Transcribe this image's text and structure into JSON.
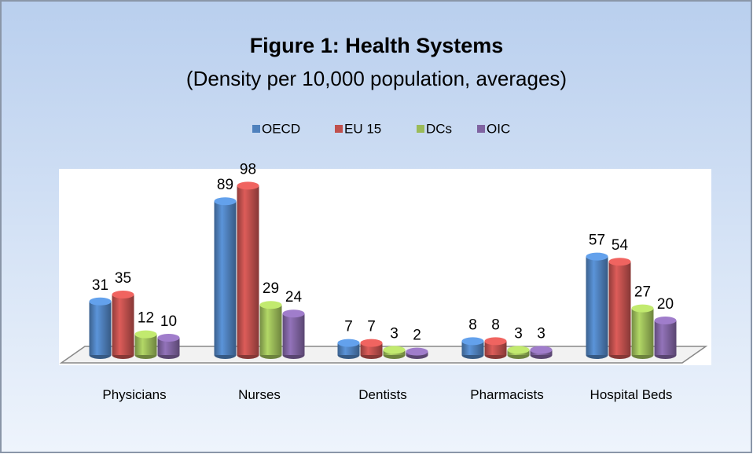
{
  "chart_data": {
    "type": "bar",
    "title": "Figure 1: Health Systems",
    "subtitle": "(Density per 10,000 population, averages)",
    "categories": [
      "Physicians",
      "Nurses",
      "Dentists",
      "Pharmacists",
      "Hospital Beds"
    ],
    "series": [
      {
        "name": "OECD",
        "color": "#4f81bd",
        "values": [
          31,
          89,
          7,
          8,
          57
        ]
      },
      {
        "name": "EU 15",
        "color": "#c0504d",
        "values": [
          35,
          98,
          7,
          8,
          54
        ]
      },
      {
        "name": "DCs",
        "color": "#9bbb59",
        "values": [
          12,
          29,
          3,
          3,
          27
        ]
      },
      {
        "name": "OIC",
        "color": "#8064a2",
        "values": [
          10,
          24,
          2,
          3,
          20
        ]
      }
    ],
    "legend": "top"
  }
}
